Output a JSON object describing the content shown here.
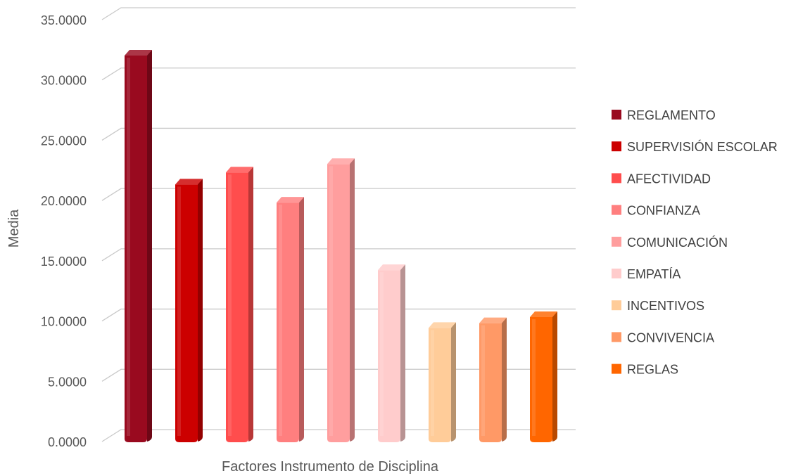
{
  "chart_data": {
    "type": "bar",
    "title": "",
    "xlabel": "Factores Instrumento de Disciplina",
    "ylabel": "Media",
    "ylim": [
      0,
      35
    ],
    "ytick_step": 5,
    "ytick_labels": [
      "0.0000",
      "5.0000",
      "10.0000",
      "15.0000",
      "20.0000",
      "25.0000",
      "30.0000",
      "35.0000"
    ],
    "grid": true,
    "legend_position": "right",
    "series": [
      {
        "name": "REGLAMENTO",
        "value": 32.2,
        "color": "#990a1f"
      },
      {
        "name": "SUPERVISIÓN ESCOLAR",
        "value": 21.5,
        "color": "#cc0000"
      },
      {
        "name": "AFECTIVIDAD",
        "value": 22.5,
        "color": "#ff4d4d"
      },
      {
        "name": "CONFIANZA",
        "value": 20.0,
        "color": "#ff7f7f"
      },
      {
        "name": "COMUNICACIÓN",
        "value": 23.2,
        "color": "#ff9e9e"
      },
      {
        "name": "EMPATÍA",
        "value": 14.4,
        "color": "#ffcccc"
      },
      {
        "name": "INCENTIVOS",
        "value": 9.6,
        "color": "#ffcc99"
      },
      {
        "name": "CONVIVENCIA",
        "value": 10.0,
        "color": "#ff9966"
      },
      {
        "name": "REGLAS",
        "value": 10.5,
        "color": "#ff6600"
      }
    ]
  }
}
